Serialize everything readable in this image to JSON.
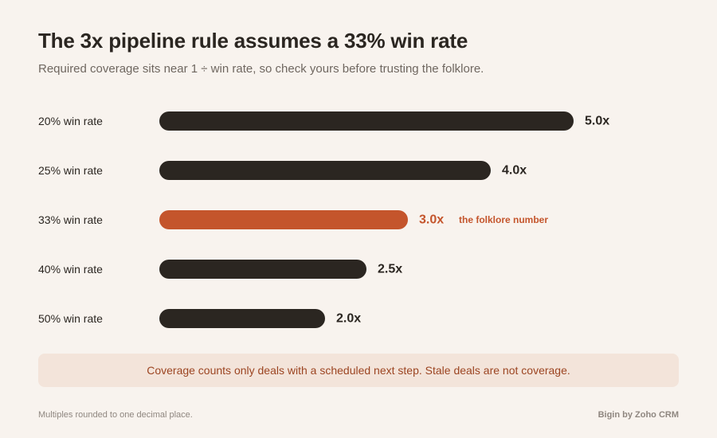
{
  "header": {
    "title": "The 3x pipeline rule assumes a 33% win rate",
    "subtitle": "Required coverage sits near 1 ÷ win rate, so check yours before trusting the folklore."
  },
  "chart_data": {
    "type": "bar",
    "orientation": "horizontal",
    "categories": [
      "20% win rate",
      "25% win rate",
      "33% win rate",
      "40% win rate",
      "50% win rate"
    ],
    "values": [
      5.0,
      4.0,
      3.0,
      2.5,
      2.0
    ],
    "value_labels": [
      "5.0x",
      "4.0x",
      "3.0x",
      "2.5x",
      "2.0x"
    ],
    "highlight_index": 2,
    "annotation": "the folklore number",
    "xlim": [
      0,
      5.0
    ],
    "grid": false,
    "colors": {
      "bar": "#2b2621",
      "highlight": "#c4552c",
      "label": "#2b2621"
    }
  },
  "notice": {
    "text": "Coverage counts only deals with a scheduled next step. Stale deals are not coverage.",
    "background": "#f3e4da",
    "text_color": "#9c4522"
  },
  "footer": {
    "footnote": "Multiples rounded to one decimal place.",
    "brand": "Bigin by Zoho CRM"
  }
}
